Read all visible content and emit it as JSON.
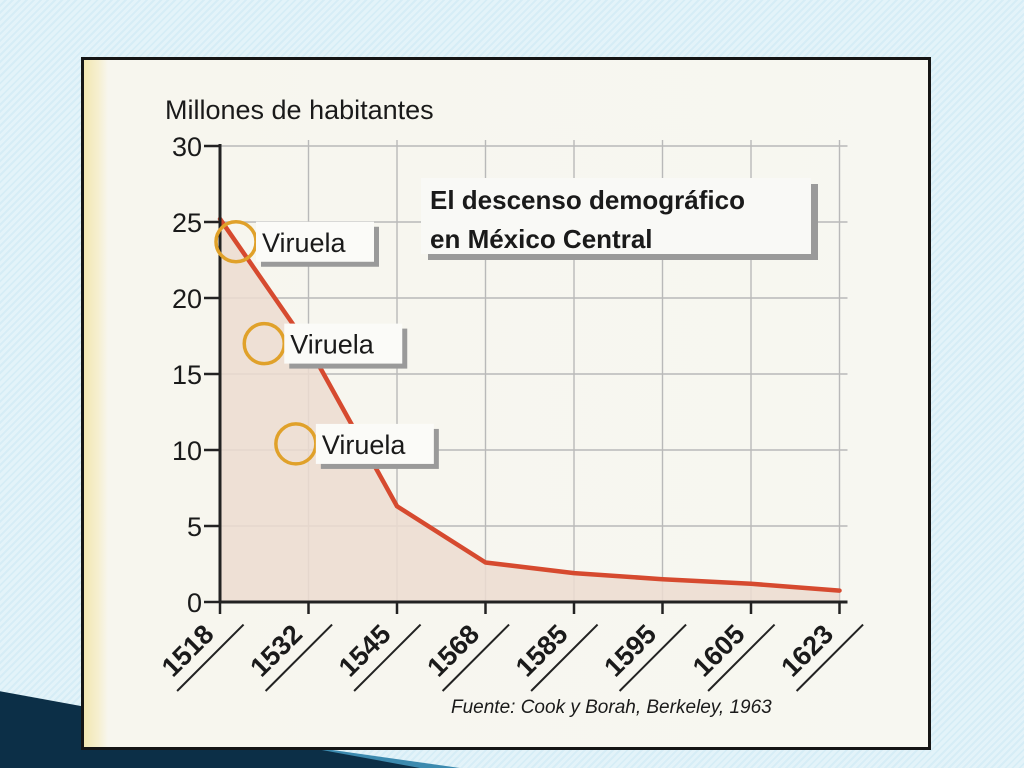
{
  "colors": {
    "line": "#d64a2f",
    "area": "#ecdcd0",
    "circle": "#e0a12a",
    "grid": "#b9b9b9",
    "axis": "#222222"
  },
  "chart_data": {
    "type": "area",
    "title": "El descenso demográfico\nen México Central",
    "ylabel": "Millones de habitantes",
    "xlabel": "",
    "source": "Fuente: Cook y Borah, Berkeley, 1963",
    "categories": [
      "1518",
      "1532",
      "1545",
      "1568",
      "1585",
      "1595",
      "1605",
      "1623"
    ],
    "yticks": [
      "0",
      "5",
      "10",
      "15",
      "20",
      "25",
      "30"
    ],
    "ylim": [
      0,
      30
    ],
    "grid": true,
    "series": [
      {
        "values": [
          25.2,
          16.8,
          6.3,
          2.6,
          1.9,
          1.5,
          1.2,
          0.75
        ]
      }
    ],
    "annotations": [
      {
        "label": "Viruela",
        "year": 1518,
        "y": 23.7
      },
      {
        "label": "Viruela",
        "year": 1525,
        "y": 17.0
      },
      {
        "label": "Viruela",
        "year": 1530,
        "y": 10.4
      }
    ]
  }
}
